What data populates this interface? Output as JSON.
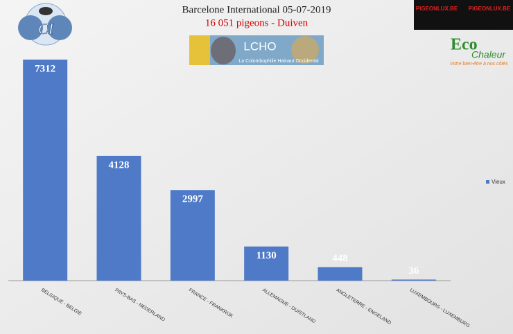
{
  "chart_data": {
    "type": "bar",
    "title": "Barcelone International 05-07-2019",
    "subtitle": "16 051 pigeons - Duiven",
    "categories": [
      "BELGIQUE - BELGIE",
      "PAYS-BAS - NEDERLAND",
      "FRANCE - FRANKRIJK",
      "ALLEMAGNE - DUISTLAND",
      "ANGLETERRE - ENGELAND",
      "LUXEMBOURG - LUXEMBURG"
    ],
    "series": [
      {
        "name": "Vieux",
        "color": "#4f7ac7",
        "values": [
          7312,
          4128,
          2997,
          1130,
          448,
          36
        ]
      }
    ],
    "ylim": [
      0,
      8000
    ],
    "legend": "right"
  },
  "logos": {
    "lcho": "LCHO",
    "lcho_caption": "La Colombophilie Hainaut Occidental",
    "eco": "Eco",
    "chaleur": "Chaleur",
    "eco_caption": "Votre bien-être à nos côtés",
    "pigeonlux": "PIGEONLUX.BE"
  }
}
